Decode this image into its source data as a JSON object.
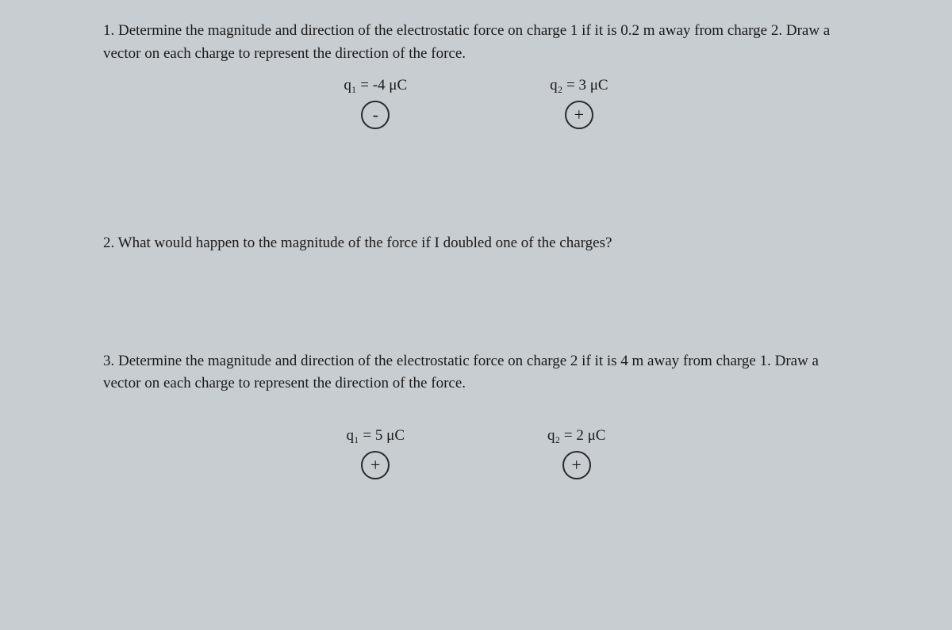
{
  "question1": {
    "text": "1. Determine the magnitude and direction of the electrostatic force on charge 1 if it is 0.2 m away from charge 2. Draw a vector on each charge to represent the direction of the force.",
    "charge1": {
      "label": "q₁ = -4 μC",
      "sign": "-"
    },
    "charge2": {
      "label": "q₂ = 3 μC",
      "sign": "+"
    }
  },
  "question2": {
    "text": "2. What would happen to the magnitude of the force if I doubled one of the charges?"
  },
  "question3": {
    "text": "3. Determine the magnitude and direction of the electrostatic force on charge 2 if it is 4 m away from charge 1. Draw a vector on each charge to represent the direction of the force.",
    "charge1": {
      "label": "q₁ = 5 μC",
      "sign": "+"
    },
    "charge2": {
      "label": "q₂ = 2 μC",
      "sign": "+"
    }
  },
  "colors": {
    "background": "#c8cdd1",
    "text": "#1a1a1a",
    "circle_border": "#2a2a2a"
  }
}
